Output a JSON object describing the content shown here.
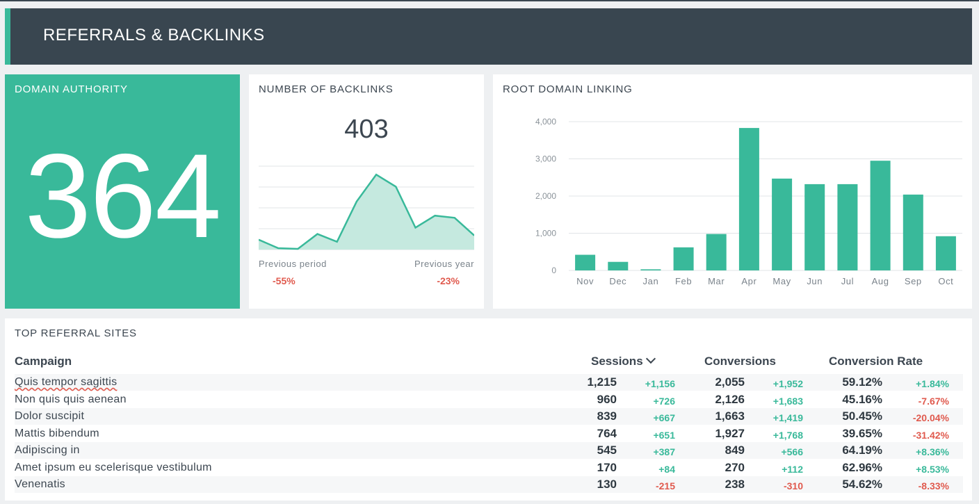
{
  "header": {
    "title": "REFERRALS & BACKLINKS"
  },
  "domain_authority": {
    "title": "DOMAIN AUTHORITY",
    "value": "364"
  },
  "backlinks": {
    "title": "NUMBER OF BACKLINKS",
    "value": "403",
    "previous_period_label": "Previous period",
    "previous_period_value": "-55%",
    "previous_year_label": "Previous year",
    "previous_year_value": "-23%",
    "sparkline": [
      14,
      2,
      1,
      22,
      11,
      68,
      106,
      89,
      31,
      48,
      45,
      20
    ],
    "colors": {
      "line": "#39b99a",
      "fill": "#c5e9df"
    }
  },
  "root_domain": {
    "title": "ROOT DOMAIN LINKING",
    "chart_data": {
      "type": "bar",
      "categories": [
        "Nov",
        "Dec",
        "Jan",
        "Feb",
        "Mar",
        "Apr",
        "May",
        "Jun",
        "Jul",
        "Aug",
        "Sep",
        "Oct"
      ],
      "values": [
        420,
        230,
        30,
        620,
        980,
        3830,
        2470,
        2320,
        2320,
        2950,
        2040,
        920
      ],
      "ylim": [
        0,
        4000
      ],
      "yticks": [
        0,
        1000,
        2000,
        3000,
        4000
      ],
      "ytick_labels": [
        "0",
        "1,000",
        "2,000",
        "3,000",
        "4,000"
      ],
      "grid": true,
      "color": "#39b99a"
    }
  },
  "referrals": {
    "title": "TOP REFERRAL SITES",
    "columns": {
      "campaign": "Campaign",
      "sessions": "Sessions",
      "conversions": "Conversions",
      "rate": "Conversion Rate"
    },
    "rows": [
      {
        "name": "Quis tempor sagittis",
        "sessions": "1,215",
        "sessions_delta": "+1,156",
        "conversions": "2,055",
        "conversions_delta": "+1,952",
        "rate": "59.12%",
        "rate_delta": "+1.84%"
      },
      {
        "name": "Non quis quis aenean",
        "sessions": "960",
        "sessions_delta": "+726",
        "conversions": "2,126",
        "conversions_delta": "+1,683",
        "rate": "45.16%",
        "rate_delta": "-7.67%"
      },
      {
        "name": "Dolor suscipit",
        "sessions": "839",
        "sessions_delta": "+667",
        "conversions": "1,663",
        "conversions_delta": "+1,419",
        "rate": "50.45%",
        "rate_delta": "-20.04%"
      },
      {
        "name": "Mattis bibendum",
        "sessions": "764",
        "sessions_delta": "+651",
        "conversions": "1,927",
        "conversions_delta": "+1,768",
        "rate": "39.65%",
        "rate_delta": "-31.42%"
      },
      {
        "name": "Adipiscing in",
        "sessions": "545",
        "sessions_delta": "+387",
        "conversions": "849",
        "conversions_delta": "+566",
        "rate": "64.19%",
        "rate_delta": "+8.36%"
      },
      {
        "name": "Amet ipsum eu scelerisque vestibulum",
        "sessions": "170",
        "sessions_delta": "+84",
        "conversions": "270",
        "conversions_delta": "+112",
        "rate": "62.96%",
        "rate_delta": "+8.53%"
      },
      {
        "name": "Venenatis",
        "sessions": "130",
        "sessions_delta": "-215",
        "conversions": "238",
        "conversions_delta": "-310",
        "rate": "54.62%",
        "rate_delta": "-8.33%"
      }
    ]
  }
}
